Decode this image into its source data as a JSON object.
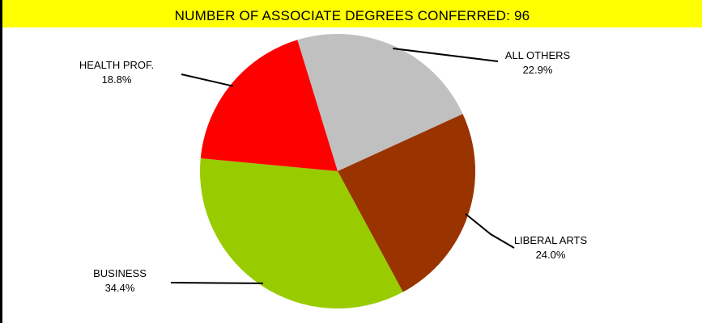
{
  "chart_data": {
    "type": "pie",
    "title": "NUMBER OF ASSOCIATE DEGREES CONFERRED: 96",
    "slices": [
      {
        "label": "ALL OTHERS",
        "value": 22.9,
        "value_label": "22.9%",
        "color": "#c0c0c0"
      },
      {
        "label": "LIBERAL ARTS",
        "value": 24.0,
        "value_label": "24.0%",
        "color": "#993300"
      },
      {
        "label": "BUSINESS",
        "value": 34.4,
        "value_label": "34.4%",
        "color": "#99cc00"
      },
      {
        "label": "HEALTH PROF.",
        "value": 18.8,
        "value_label": "18.8%",
        "color": "#ff0000"
      }
    ]
  },
  "colors": {
    "title_background": "#ffff00",
    "left_border": "#000000"
  }
}
